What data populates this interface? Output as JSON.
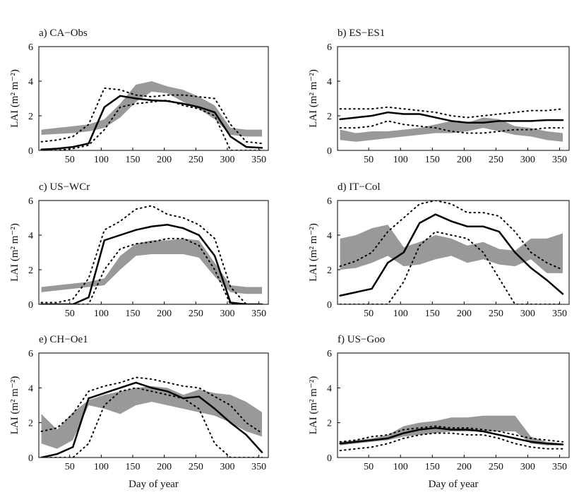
{
  "chart_data": [
    {
      "type": "line",
      "title": "a) CA−Obs",
      "ylabel": "LAI (m² m⁻²)",
      "xlim": [
        1,
        365
      ],
      "ylim": [
        0,
        6
      ],
      "xticks": [
        50,
        100,
        150,
        200,
        250,
        300,
        350
      ],
      "yticks": [
        0,
        2,
        4,
        6
      ],
      "x": [
        5,
        30,
        55,
        80,
        105,
        130,
        155,
        180,
        205,
        230,
        255,
        280,
        305,
        330,
        355
      ],
      "series": [
        {
          "style": "band",
          "color": "#999999",
          "low": [
            0.9,
            0.95,
            1.0,
            1.1,
            1.3,
            1.9,
            2.8,
            3.4,
            3.3,
            2.8,
            2.4,
            1.8,
            0.9,
            0.8,
            0.8
          ],
          "high": [
            1.2,
            1.3,
            1.4,
            1.5,
            1.8,
            2.7,
            3.8,
            4.0,
            3.7,
            3.5,
            3.1,
            2.6,
            1.3,
            1.2,
            1.2
          ]
        },
        {
          "style": "dotted",
          "color": "#000000",
          "values": [
            0.5,
            0.6,
            0.8,
            1.5,
            3.6,
            3.5,
            3.2,
            3.1,
            3.2,
            3.2,
            3.1,
            3.0,
            1.5,
            0.5,
            0.4
          ]
        },
        {
          "style": "dotted",
          "color": "#000000",
          "values": [
            0,
            0,
            0.1,
            0.3,
            1.2,
            2.5,
            2.7,
            2.8,
            2.9,
            2.6,
            2.4,
            2.0,
            0,
            0,
            0
          ]
        },
        {
          "style": "solid",
          "color": "#000000",
          "values": [
            0.05,
            0.1,
            0.2,
            0.4,
            2.5,
            3.15,
            3.0,
            2.9,
            2.85,
            2.7,
            2.5,
            2.2,
            0.8,
            0.2,
            0.15
          ]
        }
      ]
    },
    {
      "type": "line",
      "title": "b) ES−ES1",
      "ylabel": "LAI (m² m⁻²)",
      "xlim": [
        1,
        365
      ],
      "ylim": [
        0,
        6
      ],
      "xticks": [
        50,
        100,
        150,
        200,
        250,
        300,
        350
      ],
      "yticks": [
        0,
        2,
        4,
        6
      ],
      "x": [
        5,
        30,
        55,
        80,
        105,
        130,
        155,
        180,
        205,
        230,
        255,
        280,
        305,
        330,
        355
      ],
      "series": [
        {
          "style": "band",
          "color": "#999999",
          "low": [
            0.6,
            0.5,
            0.6,
            0.7,
            0.8,
            0.9,
            1.0,
            1.0,
            1.1,
            1.3,
            1.1,
            0.9,
            0.8,
            0.6,
            0.5
          ],
          "high": [
            1.2,
            1.0,
            1.1,
            1.1,
            1.2,
            1.3,
            1.5,
            1.7,
            1.6,
            1.9,
            1.8,
            1.4,
            1.3,
            1.1,
            1.0
          ]
        },
        {
          "style": "dotted",
          "color": "#000000",
          "values": [
            2.4,
            2.4,
            2.4,
            2.5,
            2.4,
            2.3,
            2.2,
            2.0,
            1.9,
            2.0,
            2.1,
            2.2,
            2.3,
            2.3,
            2.4
          ]
        },
        {
          "style": "dotted",
          "color": "#000000",
          "values": [
            1.3,
            1.3,
            1.4,
            1.7,
            1.5,
            1.4,
            1.3,
            1.1,
            1.0,
            1.0,
            1.1,
            1.2,
            1.2,
            1.3,
            1.3
          ]
        },
        {
          "style": "solid",
          "color": "#000000",
          "values": [
            1.8,
            1.9,
            2.0,
            2.2,
            2.1,
            2.1,
            1.9,
            1.7,
            1.6,
            1.6,
            1.7,
            1.7,
            1.7,
            1.75,
            1.75
          ]
        }
      ]
    },
    {
      "type": "line",
      "title": "c) US−WCr",
      "ylabel": "LAI (m² m⁻²)",
      "xlim": [
        1,
        365
      ],
      "ylim": [
        0,
        6
      ],
      "xticks": [
        50,
        100,
        150,
        200,
        250,
        300,
        350
      ],
      "yticks": [
        0,
        2,
        4,
        6
      ],
      "x": [
        5,
        30,
        55,
        80,
        105,
        130,
        155,
        180,
        205,
        230,
        255,
        280,
        305,
        330,
        355
      ],
      "series": [
        {
          "style": "band",
          "color": "#999999",
          "low": [
            0.7,
            0.8,
            0.9,
            1.0,
            1.1,
            2.0,
            2.8,
            2.9,
            2.9,
            2.9,
            2.7,
            1.6,
            0.7,
            0.6,
            0.6
          ],
          "high": [
            1.0,
            1.1,
            1.2,
            1.3,
            1.5,
            2.8,
            3.5,
            3.7,
            3.7,
            3.8,
            3.7,
            2.4,
            1.1,
            1.0,
            1.0
          ]
        },
        {
          "style": "dotted",
          "color": "#000000",
          "values": [
            0.1,
            0.1,
            0.3,
            1.5,
            4.3,
            4.8,
            5.5,
            5.7,
            5.2,
            5.0,
            4.6,
            3.8,
            1.0,
            0,
            0
          ]
        },
        {
          "style": "dotted",
          "color": "#000000",
          "values": [
            0,
            0,
            0,
            0,
            2.0,
            3.2,
            3.5,
            3.6,
            3.8,
            3.8,
            3.4,
            2.0,
            0,
            0,
            0
          ]
        },
        {
          "style": "solid",
          "color": "#000000",
          "values": [
            0,
            0,
            0,
            0.4,
            3.7,
            4.0,
            4.3,
            4.5,
            4.6,
            4.4,
            4.0,
            2.8,
            0.1,
            0,
            0
          ]
        }
      ]
    },
    {
      "type": "line",
      "title": "d) IT−Col",
      "ylabel": "LAI (m² m⁻²)",
      "xlim": [
        1,
        365
      ],
      "ylim": [
        0,
        6
      ],
      "xticks": [
        50,
        100,
        150,
        200,
        250,
        300,
        350
      ],
      "yticks": [
        0,
        2,
        4,
        6
      ],
      "x": [
        5,
        30,
        55,
        80,
        105,
        130,
        155,
        180,
        205,
        230,
        255,
        280,
        305,
        330,
        355
      ],
      "series": [
        {
          "style": "band",
          "color": "#999999",
          "low": [
            2.0,
            2.1,
            2.4,
            2.8,
            2.2,
            2.3,
            2.6,
            2.8,
            2.4,
            2.6,
            2.3,
            2.2,
            2.6,
            1.8,
            1.8
          ],
          "high": [
            3.8,
            4.0,
            4.4,
            4.6,
            3.3,
            3.6,
            4.0,
            3.8,
            3.4,
            3.6,
            3.2,
            3.1,
            3.8,
            3.8,
            4.1
          ]
        },
        {
          "style": "dotted",
          "color": "#000000",
          "values": [
            2.2,
            2.5,
            3.0,
            4.2,
            5.0,
            5.8,
            6.0,
            5.8,
            5.3,
            5.3,
            5.1,
            4.2,
            3.0,
            2.4,
            2.0
          ]
        },
        {
          "style": "dotted",
          "color": "#000000",
          "values": [
            0,
            0,
            0,
            0,
            1.3,
            3.4,
            4.2,
            4.0,
            3.8,
            3.0,
            1.5,
            0,
            0,
            0,
            0
          ]
        },
        {
          "style": "solid",
          "color": "#000000",
          "values": [
            0.5,
            0.7,
            0.9,
            2.4,
            3.0,
            4.7,
            5.2,
            4.8,
            4.5,
            4.5,
            4.2,
            3.0,
            2.1,
            1.4,
            0.6
          ]
        }
      ]
    },
    {
      "type": "line",
      "title": "e) CH−Oe1",
      "ylabel": "LAI (m² m⁻²)",
      "xlabel": "Day of year",
      "xlim": [
        1,
        365
      ],
      "ylim": [
        0,
        6
      ],
      "xticks": [
        50,
        100,
        150,
        200,
        250,
        300,
        350
      ],
      "yticks": [
        0,
        2,
        4,
        6
      ],
      "x": [
        5,
        30,
        55,
        80,
        105,
        130,
        155,
        180,
        205,
        230,
        255,
        280,
        305,
        330,
        355
      ],
      "series": [
        {
          "style": "band",
          "color": "#999999",
          "low": [
            0.8,
            0.5,
            1.0,
            3.0,
            2.8,
            2.5,
            3.0,
            3.2,
            3.0,
            2.8,
            2.6,
            2.4,
            2.0,
            1.5,
            1.2
          ],
          "high": [
            2.5,
            1.6,
            2.6,
            3.3,
            3.6,
            3.8,
            4.0,
            4.1,
            4.0,
            3.6,
            3.9,
            3.7,
            3.6,
            3.2,
            2.6
          ]
        },
        {
          "style": "dotted",
          "color": "#000000",
          "values": [
            1.5,
            1.7,
            2.5,
            3.8,
            4.1,
            4.3,
            4.6,
            4.5,
            4.3,
            4.1,
            4.0,
            3.5,
            3.0,
            2.0,
            1.4
          ]
        },
        {
          "style": "dotted",
          "color": "#000000",
          "values": [
            0,
            0,
            0,
            0.8,
            3.0,
            3.8,
            4.0,
            3.8,
            3.6,
            3.4,
            2.8,
            0.8,
            0,
            0,
            0
          ]
        },
        {
          "style": "solid",
          "color": "#000000",
          "values": [
            0,
            0.2,
            0.6,
            3.4,
            3.7,
            4.0,
            4.3,
            4.0,
            3.8,
            3.4,
            3.5,
            2.8,
            2.0,
            1.3,
            0.3
          ]
        }
      ]
    },
    {
      "type": "line",
      "title": "f) US−Goo",
      "ylabel": "LAI (m² m⁻²)",
      "xlabel": "Day of year",
      "xlim": [
        1,
        365
      ],
      "ylim": [
        0,
        6
      ],
      "xticks": [
        50,
        100,
        150,
        200,
        250,
        300,
        350
      ],
      "yticks": [
        0,
        2,
        4,
        6
      ],
      "x": [
        5,
        30,
        55,
        80,
        105,
        130,
        155,
        180,
        205,
        230,
        255,
        280,
        305,
        330,
        355
      ],
      "series": [
        {
          "style": "band",
          "color": "#999999",
          "low": [
            0.7,
            0.8,
            0.9,
            1.0,
            1.2,
            1.3,
            1.4,
            1.5,
            1.5,
            1.5,
            1.5,
            1.5,
            0.8,
            0.7,
            0.7
          ],
          "high": [
            0.9,
            1.0,
            1.1,
            1.3,
            1.8,
            2.0,
            2.1,
            2.3,
            2.3,
            2.4,
            2.4,
            2.4,
            1.2,
            0.9,
            0.8
          ]
        },
        {
          "style": "dotted",
          "color": "#000000",
          "values": [
            0.9,
            1.0,
            1.2,
            1.3,
            1.6,
            1.7,
            1.8,
            1.7,
            1.7,
            1.6,
            1.5,
            1.3,
            1.1,
            1.0,
            0.9
          ]
        },
        {
          "style": "dotted",
          "color": "#000000",
          "values": [
            0.4,
            0.5,
            0.6,
            0.8,
            1.1,
            1.3,
            1.4,
            1.4,
            1.3,
            1.3,
            1.1,
            0.8,
            0.6,
            0.5,
            0.5
          ]
        },
        {
          "style": "solid",
          "color": "#000000",
          "values": [
            0.8,
            0.9,
            1.0,
            1.1,
            1.4,
            1.6,
            1.7,
            1.6,
            1.6,
            1.5,
            1.3,
            1.1,
            0.9,
            0.8,
            0.75
          ]
        }
      ]
    }
  ]
}
